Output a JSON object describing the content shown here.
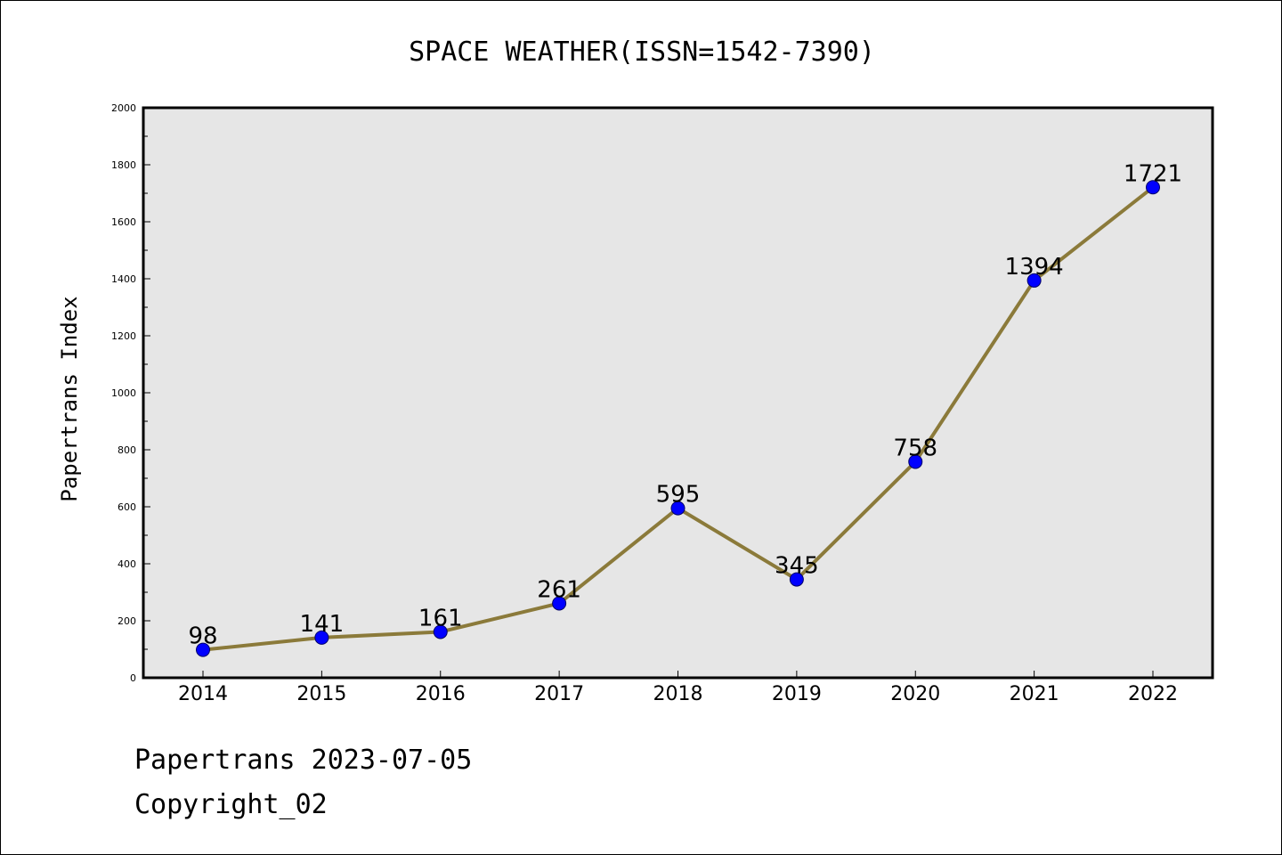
{
  "chart_data": {
    "type": "line",
    "title": "SPACE WEATHER(ISSN=1542-7390)",
    "xlabel": "",
    "ylabel": "Papertrans Index",
    "categories": [
      "2014",
      "2015",
      "2016",
      "2017",
      "2018",
      "2019",
      "2020",
      "2021",
      "2022"
    ],
    "series": [
      {
        "values": [
          98,
          141,
          161,
          261,
          595,
          345,
          758,
          1394,
          1721
        ]
      }
    ],
    "ylim": [
      0,
      2000
    ],
    "yticks": [
      0,
      200,
      400,
      600,
      800,
      1000,
      1200,
      1400,
      1600,
      1800,
      2000
    ],
    "grid": false,
    "legend": "none",
    "data_labels": true
  },
  "colors": {
    "plot_background": "#e6e6e6",
    "line": "#8b7a3a",
    "marker_fill": "#0000ff",
    "marker_edge": "#000066",
    "text": "#000000"
  },
  "footer": {
    "line1": "Papertrans 2023-07-05",
    "line2": "Copyright_02"
  }
}
